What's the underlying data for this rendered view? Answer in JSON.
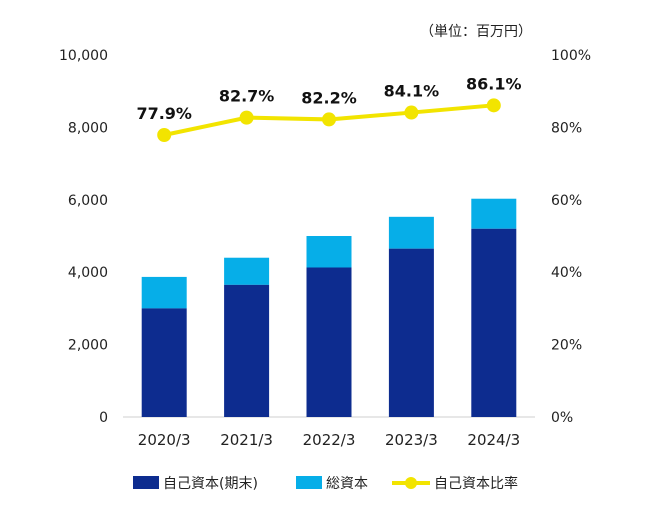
{
  "chart_data": {
    "type": "bar",
    "unit_note": "（単位：百万円）",
    "categories": [
      "2020/3",
      "2021/3",
      "2022/3",
      "2023/3",
      "2024/3"
    ],
    "series": [
      {
        "name": "自己資本(期末)",
        "kind": "bar",
        "axis": "left",
        "color": "#0d2c8f",
        "values": [
          3000,
          3650,
          4130,
          4650,
          5200
        ]
      },
      {
        "name": "総資本",
        "kind": "stacked-bar-total",
        "axis": "left",
        "color": "#06aee8",
        "values": [
          3870,
          4400,
          5000,
          5530,
          6030
        ]
      },
      {
        "name": "自己資本比率",
        "kind": "line",
        "axis": "right",
        "color": "#f2e400",
        "values": [
          77.9,
          82.7,
          82.2,
          84.1,
          86.1
        ],
        "labels": [
          "77.9%",
          "82.7%",
          "82.2%",
          "84.1%",
          "86.1%"
        ]
      }
    ],
    "y_left": {
      "min": 0,
      "max": 10000,
      "ticks": [
        "0",
        "2,000",
        "4,000",
        "6,000",
        "8,000",
        "10,000"
      ],
      "tick_values": [
        0,
        2000,
        4000,
        6000,
        8000,
        10000
      ]
    },
    "y_right": {
      "min": 0,
      "max": 100,
      "ticks": [
        "0%",
        "20%",
        "40%",
        "60%",
        "80%",
        "100%"
      ],
      "tick_values": [
        0,
        20,
        40,
        60,
        80,
        100
      ]
    },
    "legend_position": "bottom",
    "grid": false
  }
}
